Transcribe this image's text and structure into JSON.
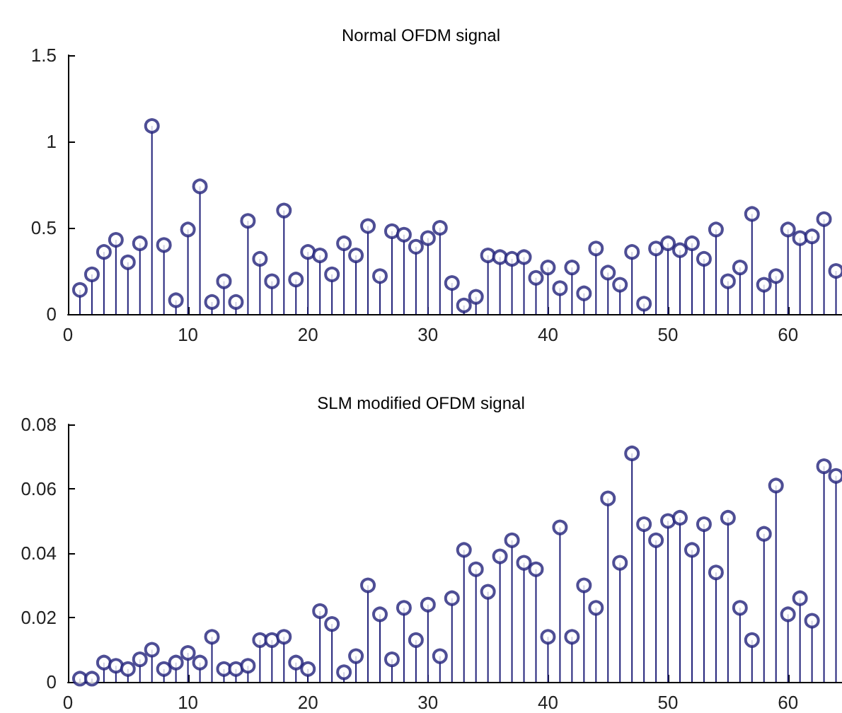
{
  "chart_data": [
    {
      "type": "lollipop",
      "title": "Normal OFDM signal",
      "x": [
        1,
        2,
        3,
        4,
        5,
        6,
        7,
        8,
        9,
        10,
        11,
        12,
        13,
        14,
        15,
        16,
        17,
        18,
        19,
        20,
        21,
        22,
        23,
        24,
        25,
        26,
        27,
        28,
        29,
        30,
        31,
        32,
        33,
        34,
        35,
        36,
        37,
        38,
        39,
        40,
        41,
        42,
        43,
        44,
        45,
        46,
        47,
        48,
        49,
        50,
        51,
        52,
        53,
        54,
        55,
        56,
        57,
        58,
        59,
        60,
        61,
        62,
        63,
        64
      ],
      "series": [
        {
          "color": "#22227a",
          "values": [
            0.14,
            0.23,
            0.36,
            0.43,
            0.3,
            0.41,
            1.09,
            0.4,
            0.08,
            0.49,
            0.74,
            0.07,
            0.19,
            0.07,
            0.54,
            0.32,
            0.19,
            0.6,
            0.2,
            0.36,
            0.34,
            0.23,
            0.41,
            0.34,
            0.51,
            0.22,
            0.48,
            0.46,
            0.39,
            0.44,
            0.5,
            0.18,
            0.05,
            0.1,
            0.34,
            0.33,
            0.32,
            0.33,
            0.21,
            0.27,
            0.15,
            0.27,
            0.12,
            0.38,
            0.24,
            0.17,
            0.36,
            0.06,
            0.38,
            0.41,
            0.37,
            0.41,
            0.32,
            0.49,
            0.19,
            0.27,
            0.58,
            0.17,
            0.22,
            0.49,
            0.44,
            0.45,
            0.55,
            0.25
          ]
        }
      ],
      "xlim": [
        0,
        64.5
      ],
      "xticks": [
        0,
        10,
        20,
        30,
        40,
        50,
        60
      ],
      "ylim": [
        0,
        1.5
      ],
      "yticks": [
        0,
        0.5,
        1,
        1.5
      ],
      "grid": false,
      "marker": "circle"
    },
    {
      "type": "lollipop",
      "title": "SLM modified OFDM signal",
      "x": [
        1,
        2,
        3,
        4,
        5,
        6,
        7,
        8,
        9,
        10,
        11,
        12,
        13,
        14,
        15,
        16,
        17,
        18,
        19,
        20,
        21,
        22,
        23,
        24,
        25,
        26,
        27,
        28,
        29,
        30,
        31,
        32,
        33,
        34,
        35,
        36,
        37,
        38,
        39,
        40,
        41,
        42,
        43,
        44,
        45,
        46,
        47,
        48,
        49,
        50,
        51,
        52,
        53,
        54,
        55,
        56,
        57,
        58,
        59,
        60,
        61,
        62,
        63,
        64
      ],
      "series": [
        {
          "color": "#22227a",
          "values": [
            0.001,
            0.001,
            0.006,
            0.005,
            0.004,
            0.007,
            0.01,
            0.004,
            0.006,
            0.009,
            0.006,
            0.014,
            0.004,
            0.004,
            0.005,
            0.013,
            0.013,
            0.014,
            0.006,
            0.004,
            0.022,
            0.018,
            0.003,
            0.008,
            0.03,
            0.021,
            0.007,
            0.023,
            0.013,
            0.024,
            0.008,
            0.026,
            0.041,
            0.035,
            0.028,
            0.039,
            0.044,
            0.037,
            0.035,
            0.014,
            0.048,
            0.014,
            0.03,
            0.023,
            0.057,
            0.037,
            0.071,
            0.049,
            0.044,
            0.05,
            0.051,
            0.041,
            0.049,
            0.034,
            0.051,
            0.023,
            0.013,
            0.046,
            0.061,
            0.021,
            0.026,
            0.019,
            0.067,
            0.064
          ]
        }
      ],
      "xlim": [
        0,
        64.5
      ],
      "xticks": [
        0,
        10,
        20,
        30,
        40,
        50,
        60
      ],
      "ylim": [
        0,
        0.08
      ],
      "yticks": [
        0,
        0.02,
        0.04,
        0.06,
        0.08
      ],
      "grid": false,
      "marker": "circle"
    }
  ]
}
